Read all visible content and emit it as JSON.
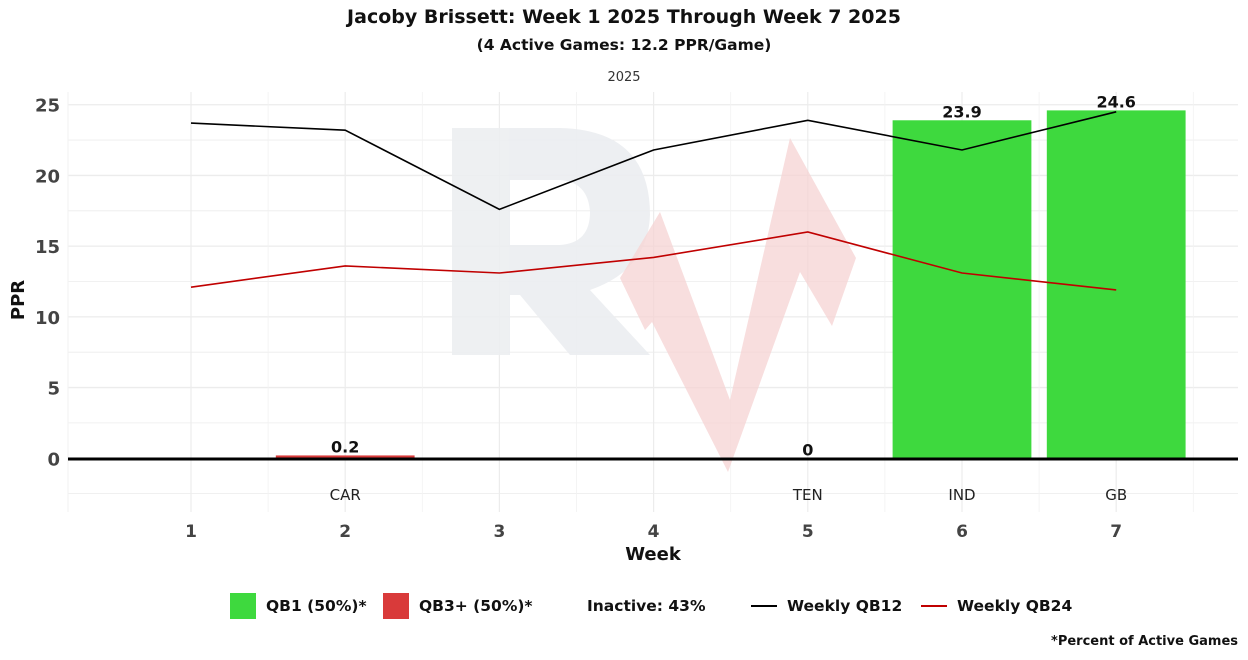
{
  "chart_data": {
    "type": "bar",
    "title": "Jacoby Brissett: Week 1 2025 Through Week 7 2025",
    "subtitle": "(4 Active Games: 12.2 PPR/Game)",
    "facet_label": "2025",
    "xlabel": "Week",
    "ylabel": "PPR",
    "ylim": [
      -3.8,
      25.9
    ],
    "yticks": [
      0,
      5,
      10,
      15,
      20,
      25
    ],
    "grid": true,
    "categories": [
      1,
      2,
      3,
      4,
      5,
      6,
      7
    ],
    "opponents": [
      "",
      "CAR",
      "",
      "",
      "TEN",
      "IND",
      "GB"
    ],
    "bars": [
      {
        "week": 2,
        "value": 0.2,
        "label": "0.2",
        "tier": "QB3+"
      },
      {
        "week": 5,
        "value": 0,
        "label": "0",
        "tier": "QB3+"
      },
      {
        "week": 6,
        "value": 23.9,
        "label": "23.9",
        "tier": "QB1"
      },
      {
        "week": 7,
        "value": 24.6,
        "label": "24.6",
        "tier": "QB1"
      }
    ],
    "series": [
      {
        "name": "Weekly QB12",
        "color": "#000000",
        "values": [
          23.7,
          23.2,
          17.6,
          21.8,
          23.9,
          21.8,
          24.5
        ]
      },
      {
        "name": "Weekly QB24",
        "color": "#c00000",
        "values": [
          12.1,
          13.6,
          13.1,
          14.2,
          16.0,
          13.1,
          11.9
        ]
      }
    ],
    "colors": {
      "QB1": "#3ed93e",
      "QB3+": "#d93a3a"
    },
    "legend_position": "bottom",
    "legend": {
      "qb1": "QB1 (50%)*",
      "qb3": "QB3+ (50%)*",
      "inactive": "Inactive: 43%",
      "qb12": "Weekly QB12",
      "qb24": "Weekly QB24"
    },
    "footnote": "*Percent of Active Games"
  }
}
